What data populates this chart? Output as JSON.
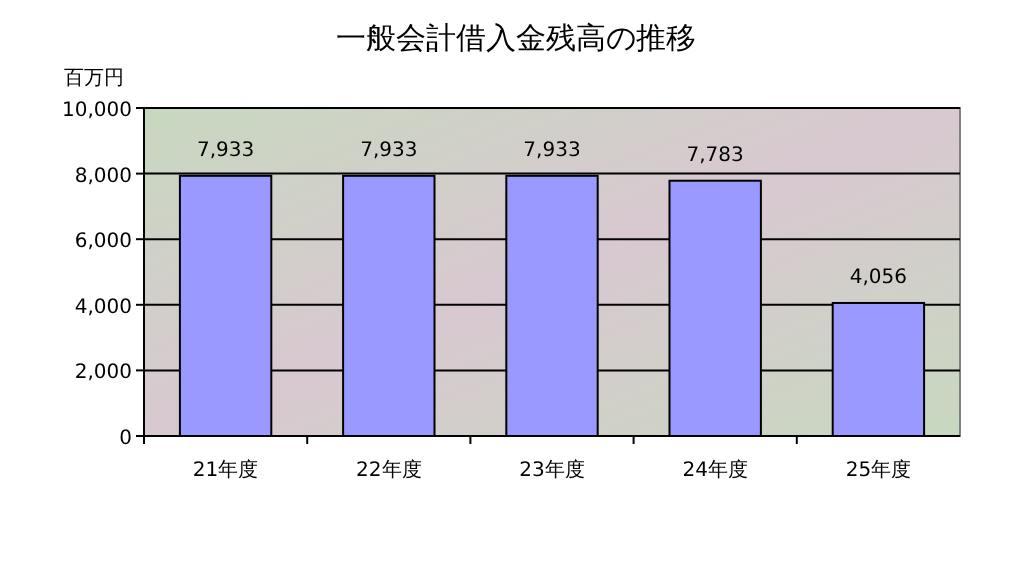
{
  "chart_data": {
    "type": "bar",
    "title": "一般会計借入金残高の推移",
    "ylabel": "百万円",
    "categories": [
      "21年度",
      "22年度",
      "23年度",
      "24年度",
      "25年度"
    ],
    "values": [
      7933,
      7933,
      7933,
      7783,
      4056
    ],
    "value_labels": [
      "7,933",
      "7,933",
      "7,933",
      "7,783",
      "4,056"
    ],
    "color": "#9999ff",
    "ylim": [
      0,
      10000
    ],
    "yticks": [
      {
        "value": 0,
        "label": "0"
      },
      {
        "value": 2000,
        "label": "2,000"
      },
      {
        "value": 4000,
        "label": "4,000"
      },
      {
        "value": 6000,
        "label": "6,000"
      },
      {
        "value": 8000,
        "label": "8,000"
      },
      {
        "value": 10000,
        "label": "10,000"
      }
    ],
    "grid": "y"
  }
}
